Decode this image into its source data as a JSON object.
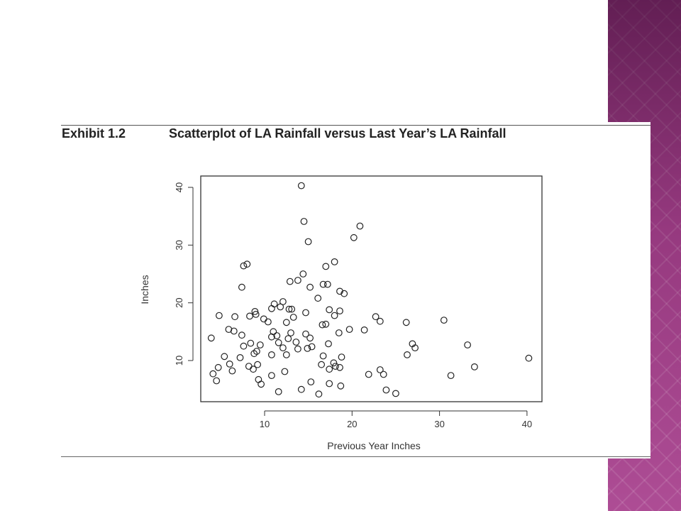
{
  "slide": {
    "accent_color": "#a9438f"
  },
  "figure": {
    "exhibit_label": "Exhibit 1.2",
    "title": "Scatterplot of LA Rainfall versus Last Year’s LA Rainfall"
  },
  "chart_data": {
    "type": "scatter",
    "title": "Scatterplot of LA Rainfall versus Last Year’s LA Rainfall",
    "xlabel": "Previous Year Inches",
    "ylabel": "Inches",
    "xlim": [
      3,
      42
    ],
    "ylim": [
      2.5,
      42
    ],
    "xticks": [
      10,
      20,
      30,
      40
    ],
    "yticks": [
      10,
      20,
      30,
      40
    ],
    "grid": false,
    "marker": "open-circle",
    "points": [
      [
        14.2,
        40.3
      ],
      [
        14.5,
        34.1
      ],
      [
        15.0,
        30.6
      ],
      [
        20.9,
        33.3
      ],
      [
        20.2,
        31.3
      ],
      [
        7.6,
        26.4
      ],
      [
        8.0,
        26.7
      ],
      [
        17.0,
        26.3
      ],
      [
        18.0,
        27.1
      ],
      [
        14.4,
        25.0
      ],
      [
        7.4,
        22.7
      ],
      [
        12.9,
        23.7
      ],
      [
        13.8,
        23.9
      ],
      [
        16.7,
        23.2
      ],
      [
        17.2,
        23.2
      ],
      [
        15.2,
        22.7
      ],
      [
        18.6,
        22.0
      ],
      [
        19.1,
        21.6
      ],
      [
        16.1,
        20.8
      ],
      [
        11.1,
        19.8
      ],
      [
        12.1,
        20.2
      ],
      [
        10.8,
        19.0
      ],
      [
        11.8,
        19.3
      ],
      [
        12.8,
        18.9
      ],
      [
        13.1,
        18.9
      ],
      [
        8.9,
        18.5
      ],
      [
        9.0,
        18.0
      ],
      [
        14.7,
        18.3
      ],
      [
        17.4,
        18.8
      ],
      [
        18.6,
        18.6
      ],
      [
        4.8,
        17.8
      ],
      [
        6.6,
        17.6
      ],
      [
        8.3,
        17.7
      ],
      [
        9.9,
        17.2
      ],
      [
        13.3,
        17.5
      ],
      [
        18.0,
        17.8
      ],
      [
        22.7,
        17.6
      ],
      [
        23.2,
        16.8
      ],
      [
        10.4,
        16.7
      ],
      [
        12.5,
        16.6
      ],
      [
        17.0,
        16.3
      ],
      [
        16.6,
        16.2
      ],
      [
        26.2,
        16.6
      ],
      [
        30.5,
        17.0
      ],
      [
        5.9,
        15.4
      ],
      [
        6.5,
        15.1
      ],
      [
        11.0,
        15.0
      ],
      [
        13.0,
        14.8
      ],
      [
        19.7,
        15.4
      ],
      [
        21.4,
        15.3
      ],
      [
        18.5,
        14.8
      ],
      [
        3.9,
        13.9
      ],
      [
        7.4,
        14.4
      ],
      [
        10.8,
        14.1
      ],
      [
        11.4,
        14.3
      ],
      [
        12.7,
        13.8
      ],
      [
        14.7,
        14.6
      ],
      [
        15.2,
        13.9
      ],
      [
        11.6,
        13.1
      ],
      [
        8.4,
        13.0
      ],
      [
        9.5,
        12.7
      ],
      [
        13.6,
        13.2
      ],
      [
        17.3,
        12.9
      ],
      [
        26.9,
        12.9
      ],
      [
        33.2,
        12.7
      ],
      [
        7.6,
        12.5
      ],
      [
        12.1,
        12.2
      ],
      [
        13.8,
        12.0
      ],
      [
        14.9,
        12.1
      ],
      [
        15.4,
        12.4
      ],
      [
        27.2,
        12.2
      ],
      [
        9.1,
        11.6
      ],
      [
        8.8,
        11.2
      ],
      [
        10.8,
        11.0
      ],
      [
        12.5,
        11.0
      ],
      [
        16.7,
        10.8
      ],
      [
        18.8,
        10.6
      ],
      [
        5.4,
        10.7
      ],
      [
        7.2,
        10.5
      ],
      [
        26.3,
        11.0
      ],
      [
        40.2,
        10.4
      ],
      [
        6.0,
        9.4
      ],
      [
        8.2,
        9.0
      ],
      [
        9.2,
        9.3
      ],
      [
        16.5,
        9.3
      ],
      [
        17.9,
        9.6
      ],
      [
        18.1,
        9.0
      ],
      [
        4.7,
        8.8
      ],
      [
        6.3,
        8.2
      ],
      [
        8.7,
        8.5
      ],
      [
        12.3,
        8.1
      ],
      [
        17.4,
        8.5
      ],
      [
        18.6,
        8.8
      ],
      [
        23.2,
        8.4
      ],
      [
        34.0,
        8.9
      ],
      [
        4.1,
        7.7
      ],
      [
        10.8,
        7.4
      ],
      [
        21.9,
        7.6
      ],
      [
        23.6,
        7.6
      ],
      [
        31.3,
        7.4
      ],
      [
        4.5,
        6.5
      ],
      [
        9.3,
        6.7
      ],
      [
        15.3,
        6.3
      ],
      [
        17.4,
        6.0
      ],
      [
        9.6,
        5.9
      ],
      [
        18.7,
        5.6
      ],
      [
        11.6,
        4.6
      ],
      [
        14.2,
        5.0
      ],
      [
        23.9,
        4.9
      ],
      [
        16.2,
        4.2
      ],
      [
        25.0,
        4.3
      ]
    ]
  }
}
